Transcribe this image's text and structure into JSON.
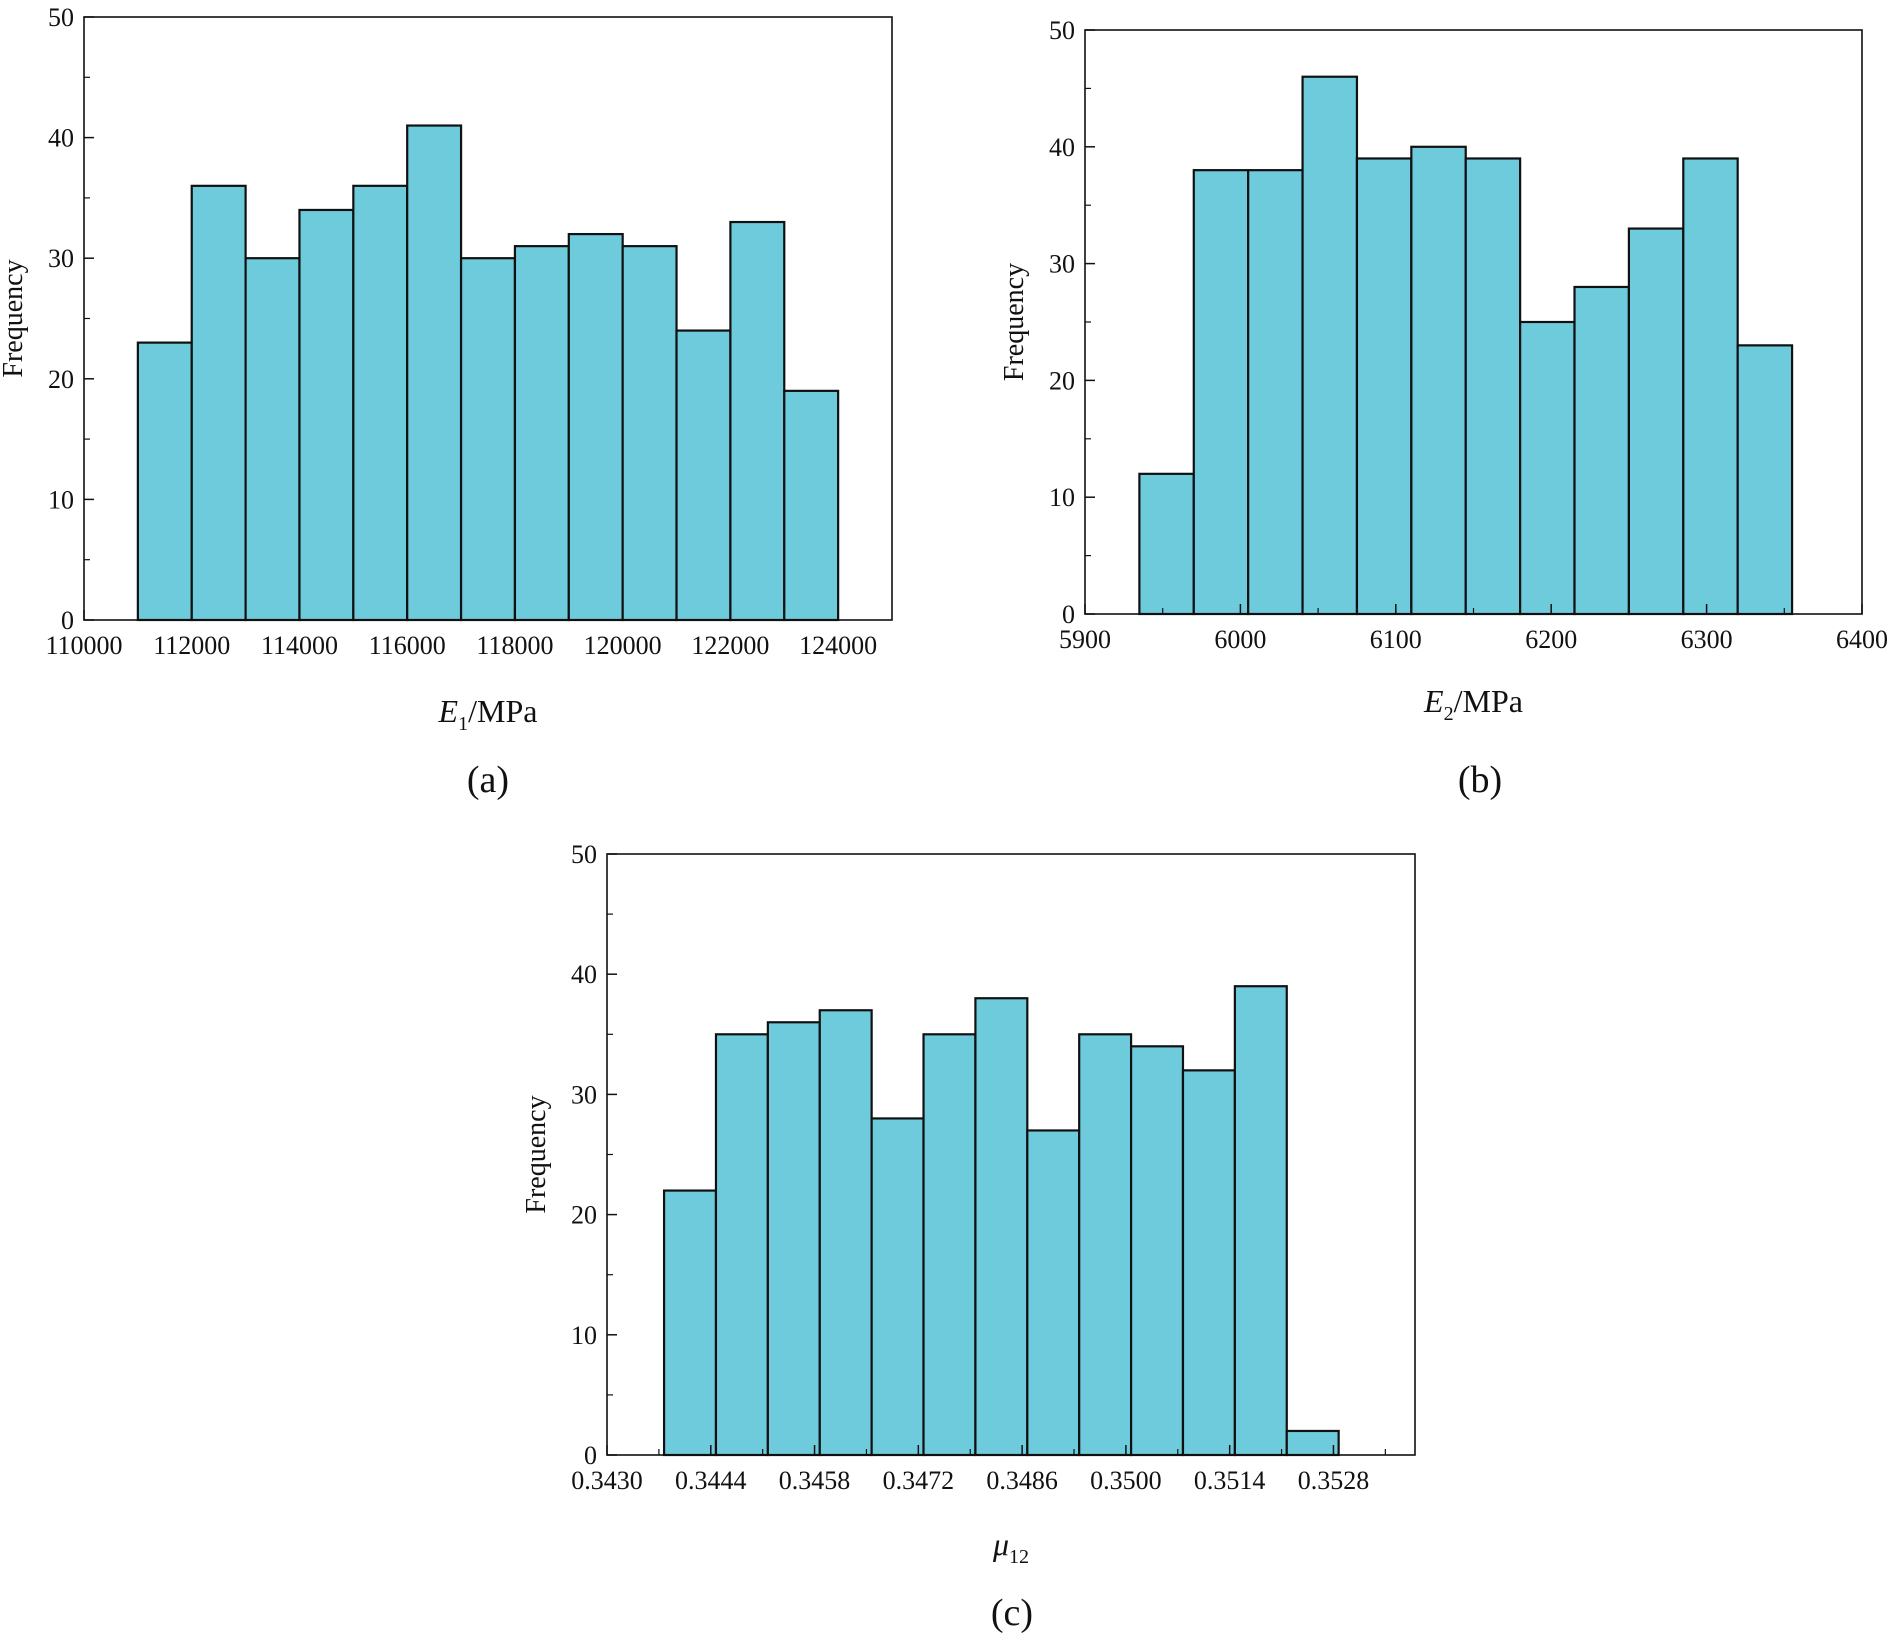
{
  "colors": {
    "bar_fill": "#6ecbdc",
    "bar_stroke": "#111111",
    "axis": "#111111"
  },
  "chart_data": [
    {
      "type": "bar",
      "caption": "(a)",
      "xlabel": {
        "main": "E",
        "sub": "1",
        "unit": "/MPa"
      },
      "ylabel": "Frequency",
      "xlim": [
        110000,
        125000
      ],
      "ylim": [
        0,
        50
      ],
      "xticks": [
        110000,
        112000,
        114000,
        116000,
        118000,
        120000,
        122000,
        124000
      ],
      "xtick_labels": [
        "110000",
        "112000",
        "114000",
        "116000",
        "118000",
        "120000",
        "122000",
        "124000"
      ],
      "yticks": [
        0,
        10,
        20,
        30,
        40,
        50
      ],
      "ytick_labels": [
        "0",
        "10",
        "20",
        "30",
        "40",
        "50"
      ],
      "bin_start": 111000,
      "bin_width": 1000,
      "values": [
        23,
        36,
        30,
        34,
        36,
        41,
        30,
        31,
        32,
        31,
        24,
        33,
        19
      ]
    },
    {
      "type": "bar",
      "caption": "(b)",
      "xlabel": {
        "main": "E",
        "sub": "2",
        "unit": "/MPa"
      },
      "ylabel": "Frequency",
      "xlim": [
        5900,
        6400
      ],
      "ylim": [
        0,
        50
      ],
      "xticks": [
        5900,
        6000,
        6100,
        6200,
        6300,
        6400
      ],
      "xtick_labels": [
        "5900",
        "6000",
        "6100",
        "6200",
        "6300",
        "6400"
      ],
      "yticks": [
        0,
        10,
        20,
        30,
        40,
        50
      ],
      "ytick_labels": [
        "0",
        "10",
        "20",
        "30",
        "40",
        "50"
      ],
      "bin_start": 5935,
      "bin_width": 35,
      "values": [
        12,
        38,
        38,
        46,
        39,
        40,
        39,
        25,
        28,
        33,
        39,
        23
      ]
    },
    {
      "type": "bar",
      "caption": "(c)",
      "xlabel": {
        "main": "μ",
        "sub": "12",
        "unit": ""
      },
      "ylabel": "Frequency",
      "xlim": [
        0.343,
        0.3539
      ],
      "ylim": [
        0,
        50
      ],
      "xticks": [
        0.343,
        0.3444,
        0.3458,
        0.3472,
        0.3486,
        0.35,
        0.3514,
        0.3528
      ],
      "xtick_labels": [
        "0.3430",
        "0.3444",
        "0.3458",
        "0.3472",
        "0.3486",
        "0.3500",
        "0.3514",
        "0.3528"
      ],
      "yticks": [
        0,
        10,
        20,
        30,
        40,
        50
      ],
      "ytick_labels": [
        "0",
        "10",
        "20",
        "30",
        "40",
        "50"
      ],
      "bin_start": 0.34377,
      "bin_width": 0.0007,
      "values": [
        22,
        35,
        36,
        37,
        28,
        35,
        38,
        27,
        35,
        34,
        32,
        39,
        2
      ]
    }
  ]
}
